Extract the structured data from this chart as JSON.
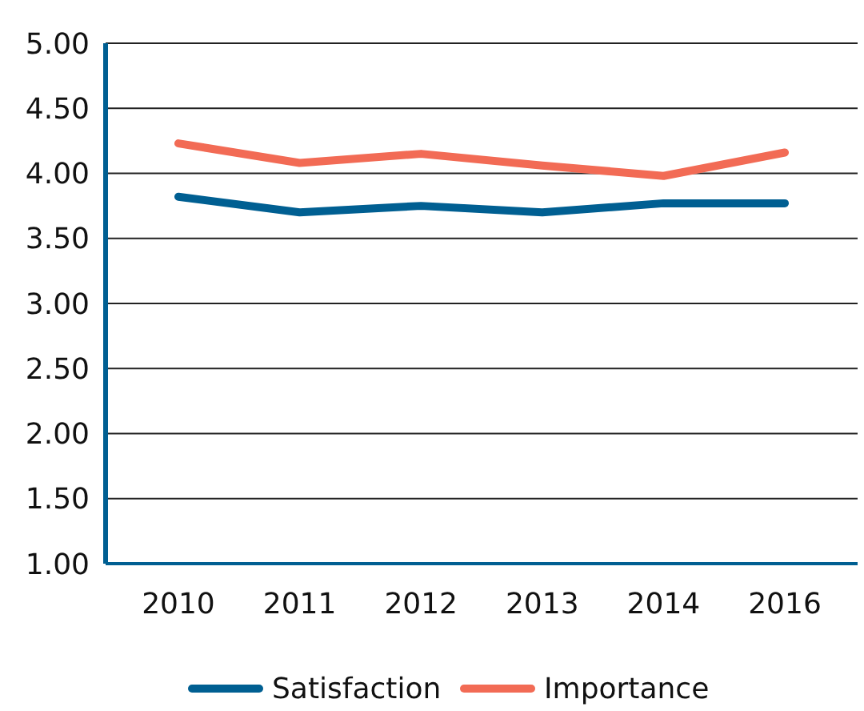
{
  "chart_data": {
    "type": "line",
    "categories": [
      "2010",
      "2011",
      "2012",
      "2013",
      "2014",
      "2016"
    ],
    "series": [
      {
        "name": "Satisfaction",
        "color": "#005f92",
        "values": [
          3.82,
          3.7,
          3.75,
          3.7,
          3.77,
          3.77
        ]
      },
      {
        "name": "Importance",
        "color": "#f26b55",
        "values": [
          4.23,
          4.08,
          4.15,
          4.06,
          3.98,
          4.16
        ]
      }
    ],
    "ylim": [
      1,
      5
    ],
    "yticks": [
      {
        "value": 1,
        "label": "1.00"
      },
      {
        "value": 1.5,
        "label": "1.50"
      },
      {
        "value": 2,
        "label": "2.00"
      },
      {
        "value": 2.5,
        "label": "2.50"
      },
      {
        "value": 3,
        "label": "3.00"
      },
      {
        "value": 3.5,
        "label": "3.50"
      },
      {
        "value": 4,
        "label": "4.00"
      },
      {
        "value": 4.5,
        "label": "4.50"
      },
      {
        "value": 5,
        "label": "5.00"
      }
    ],
    "grid": "y",
    "legend": "bottom",
    "marker": "none",
    "line_style": "solid"
  }
}
